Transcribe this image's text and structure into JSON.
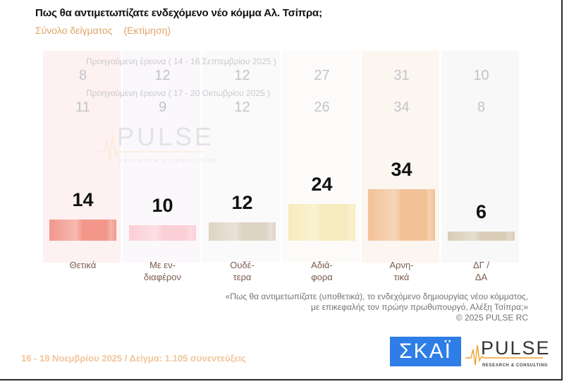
{
  "header": {
    "title": "Πως θα αντιμετωπίζατε ενδεχόμενο νέο κόμμα Αλ. Τσίπρα;",
    "subtitle_a": "Σύνολο δείγματος",
    "subtitle_b": "(Εκτίμηση)"
  },
  "chart_data": {
    "type": "bar",
    "title": "Πως θα αντιμετωπίζατε ενδεχόμενο νέο κόμμα Αλ. Τσίπρα;",
    "categories": [
      "Θετικά",
      "Με εν-\nδιαφέρον",
      "Ουδέ-\nτερα",
      "Αδιά-\nφορα",
      "Αρνη-\nτικά",
      "ΔΓ /\nΔΑ"
    ],
    "series": [
      {
        "name": "16 - 18 Νοεμβρίου 2025",
        "values": [
          14,
          10,
          12,
          24,
          34,
          6
        ]
      },
      {
        "name": "Προηγούμενη έρευνα ( 14 - 16 Σεπτεμβρίου 2025 )",
        "values": [
          8,
          12,
          12,
          27,
          31,
          10
        ]
      },
      {
        "name": "Προηγούμενη έρευνα ( 17 - 20 Οκτωβρίου 2025 )",
        "values": [
          11,
          9,
          12,
          26,
          34,
          8
        ]
      }
    ],
    "bar_colors": [
      "#f2978a",
      "#fbcfd6",
      "#ddd4c4",
      "#f6ebbd",
      "#f2c197",
      "#d9cdb8"
    ],
    "column_tints": [
      "#fdf1f1",
      "#fbf8fb",
      "#fbfafa",
      "#fcfbf9",
      "#fcf6f0",
      "#f9f8f9"
    ],
    "xlabel": "",
    "ylabel": "",
    "ylim": [
      0,
      40
    ],
    "grid": false,
    "legend": "none"
  },
  "prev_labels": {
    "sep": "Προηγούμενη έρευνα ( 14 - 16 Σεπτεμβρίου 2025 )",
    "oct": "Προηγούμενη έρευνα ( 17 - 20 Οκτωβρίου 2025 )"
  },
  "watermark": {
    "brand": "PULSE",
    "tagline": "RESEARCH & CONSULTING"
  },
  "note": {
    "line1": "«Πως θα αντιμετωπίζατε (υποθετικά), το ενδεχόμενο δημιουργίας νέου κόμματος,",
    "line2": "με επικεφαλής τον πρώην πρωθυπουργό, Αλέξη Τσίπρα;»",
    "line3": "©  2025  PULSE RC"
  },
  "footer": {
    "text": "16 - 18 Νοεμβρίου 2025  /  Δείγμα:  1.105 συνεντεύξεις"
  },
  "logos": {
    "skai": "ΣΚΑΪ",
    "pulse": "PULSE",
    "pulse_tagline": "RESEARCH & CONSULTING"
  }
}
